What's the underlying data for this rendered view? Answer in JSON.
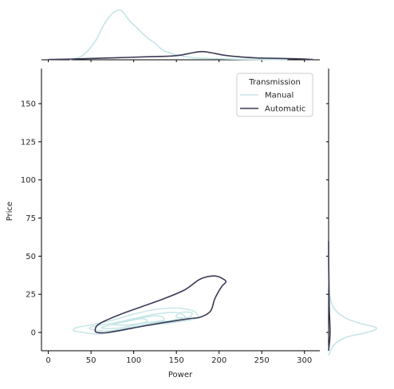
{
  "chart_data": {
    "type": "kde-joint",
    "xlabel": "Power",
    "ylabel": "Price",
    "xlim": [
      -8,
      318
    ],
    "ylim": [
      -12,
      173
    ],
    "x_ticks": [
      0,
      50,
      100,
      150,
      200,
      250,
      300
    ],
    "y_ticks": [
      0,
      25,
      50,
      75,
      100,
      125,
      150
    ],
    "legend": {
      "title": "Transmission",
      "placement": "top-right",
      "entries": [
        "Manual",
        "Automatic"
      ]
    },
    "colors": {
      "Manual": "#c5e4e6",
      "Automatic": "#3a3a57"
    },
    "series": [
      {
        "name": "Manual",
        "joint_contours": [
          [
            [
              40,
              0
            ],
            [
              60,
              -1
            ],
            [
              85,
              1
            ],
            [
              110,
              4
            ],
            [
              140,
              6
            ],
            [
              165,
              8
            ],
            [
              175,
              10
            ],
            [
              170,
              14
            ],
            [
              150,
              16
            ],
            [
              125,
              15
            ],
            [
              100,
              12
            ],
            [
              75,
              8
            ],
            [
              50,
              5
            ],
            [
              32,
              3
            ],
            [
              30,
              1
            ],
            [
              40,
              0
            ]
          ],
          [
            [
              50,
              2
            ],
            [
              70,
              1
            ],
            [
              95,
              3
            ],
            [
              120,
              6
            ],
            [
              145,
              8
            ],
            [
              160,
              10
            ],
            [
              150,
              13
            ],
            [
              125,
              12
            ],
            [
              100,
              9
            ],
            [
              75,
              6
            ],
            [
              52,
              4
            ],
            [
              50,
              2
            ]
          ],
          [
            [
              62,
              3
            ],
            [
              85,
              3
            ],
            [
              110,
              6
            ],
            [
              135,
              8
            ],
            [
              128,
              11
            ],
            [
              105,
              9
            ],
            [
              82,
              6
            ],
            [
              62,
              3
            ]
          ],
          [
            [
              75,
              5
            ],
            [
              95,
              5
            ],
            [
              115,
              7
            ],
            [
              110,
              9
            ],
            [
              90,
              7
            ],
            [
              75,
              5
            ]
          ],
          [
            [
              150,
              10
            ],
            [
              165,
              10
            ],
            [
              168,
              13
            ],
            [
              155,
              13
            ],
            [
              150,
              10
            ]
          ]
        ],
        "marginal_x": [
          [
            25,
            1e-05
          ],
          [
            40,
            0.0004
          ],
          [
            55,
            0.0018
          ],
          [
            65,
            0.0034
          ],
          [
            75,
            0.0045
          ],
          [
            85,
            0.0048
          ],
          [
            95,
            0.0038
          ],
          [
            105,
            0.003
          ],
          [
            115,
            0.0022
          ],
          [
            125,
            0.0016
          ],
          [
            135,
            0.0009
          ],
          [
            150,
            0.0005
          ],
          [
            170,
            0.0002
          ],
          [
            200,
            0.0001
          ],
          [
            240,
            3e-05
          ],
          [
            280,
            1e-05
          ]
        ],
        "marginal_y": [
          [
            -15,
            0
          ],
          [
            -8,
            0.003
          ],
          [
            -3,
            0.01
          ],
          [
            0,
            0.021
          ],
          [
            3,
            0.026
          ],
          [
            6,
            0.017
          ],
          [
            9,
            0.01
          ],
          [
            13,
            0.005
          ],
          [
            18,
            0.002
          ],
          [
            25,
            0.0005
          ],
          [
            40,
            0.0001
          ],
          [
            60,
            0
          ]
        ]
      },
      {
        "name": "Automatic",
        "joint_contours": [
          [
            [
              55,
              2
            ],
            [
              57,
              0
            ],
            [
              70,
              0
            ],
            [
              100,
              3
            ],
            [
              130,
              6
            ],
            [
              165,
              9
            ],
            [
              178,
              10
            ],
            [
              190,
              14
            ],
            [
              195,
              22
            ],
            [
              203,
              30
            ],
            [
              208,
              33
            ],
            [
              205,
              35
            ],
            [
              195,
              37
            ],
            [
              178,
              35
            ],
            [
              160,
              28
            ],
            [
              135,
              22
            ],
            [
              110,
              17
            ],
            [
              85,
              12
            ],
            [
              68,
              8
            ],
            [
              58,
              5
            ],
            [
              55,
              2
            ]
          ]
        ],
        "marginal_x": [
          [
            0,
            2e-05
          ],
          [
            40,
            0.0001
          ],
          [
            80,
            0.0002
          ],
          [
            120,
            0.0003
          ],
          [
            150,
            0.0004
          ],
          [
            170,
            0.0007
          ],
          [
            180,
            0.0008
          ],
          [
            190,
            0.0007
          ],
          [
            210,
            0.0004
          ],
          [
            240,
            0.0002
          ],
          [
            260,
            0.00015
          ],
          [
            290,
            0.0001
          ],
          [
            310,
            3e-05
          ]
        ],
        "marginal_y": [
          [
            -12,
            0
          ],
          [
            -5,
            0.0006
          ],
          [
            0,
            0.0008
          ],
          [
            5,
            0.0007
          ],
          [
            15,
            0.0004
          ],
          [
            30,
            0.0002
          ],
          [
            45,
            5e-05
          ],
          [
            60,
            0
          ]
        ]
      }
    ]
  }
}
